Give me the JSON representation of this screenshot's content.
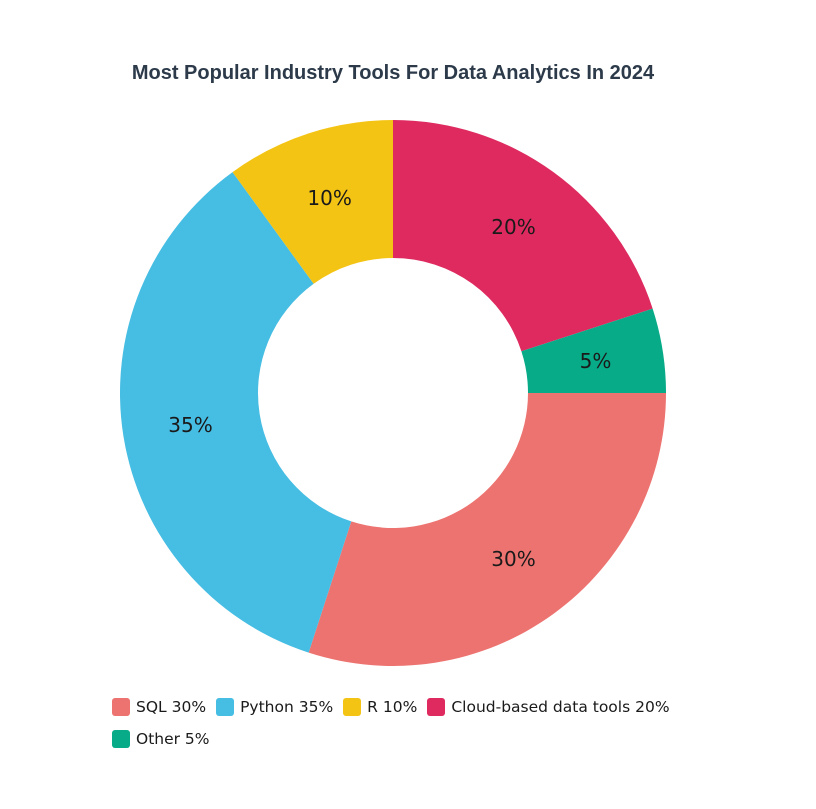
{
  "chart_data": {
    "type": "pie",
    "subtype": "donut",
    "title": "Most Popular Industry Tools For Data Analytics In 2024",
    "categories": [
      "SQL",
      "Python",
      "R",
      "Cloud-based data tools",
      "Other"
    ],
    "values": [
      30,
      35,
      10,
      20,
      5
    ],
    "slice_labels": [
      "30%",
      "35%",
      "10%",
      "20%",
      "5%"
    ],
    "colors": [
      "#ed7370",
      "#46bde3",
      "#f4c414",
      "#de2a5f",
      "#08ab88"
    ],
    "legend": {
      "placement": "bottom-left",
      "entries": [
        "SQL 30%",
        "Python 35%",
        "R 10%",
        "Cloud-based data tools 20%",
        "Other 5%"
      ]
    }
  }
}
